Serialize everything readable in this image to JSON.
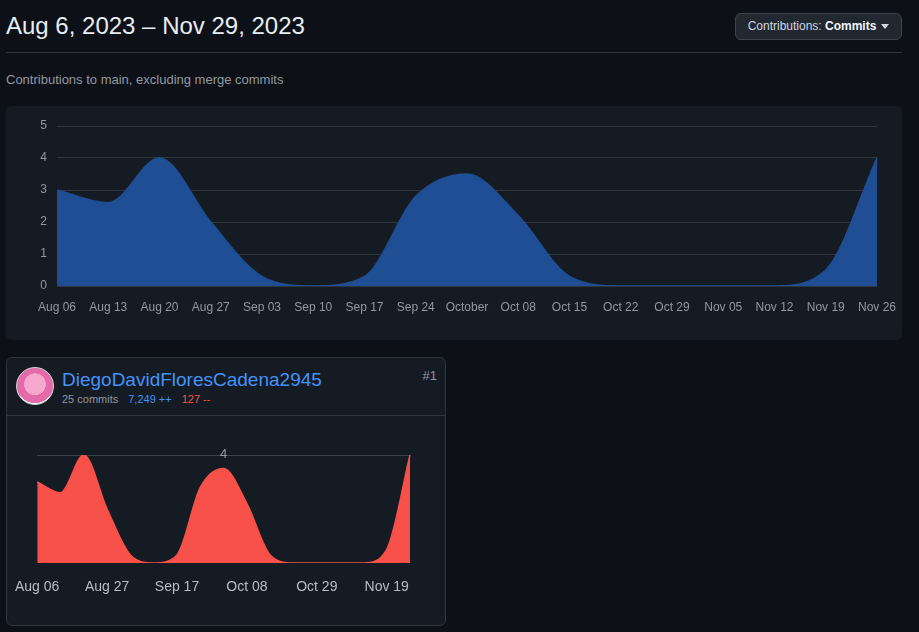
{
  "page": {
    "title": "Aug 6, 2023 – Nov 29, 2023",
    "filter_label": "Contributions:",
    "filter_value": "Commits",
    "subtitle": "Contributions to main, excluding merge commits"
  },
  "chart_data": [
    {
      "type": "area",
      "categories": [
        "Aug 06",
        "Aug 13",
        "Aug 20",
        "Aug 27",
        "Sep 03",
        "Sep 10",
        "Sep 17",
        "Sep 24",
        "October",
        "Oct 08",
        "Oct 15",
        "Oct 22",
        "Oct 29",
        "Nov 05",
        "Nov 12",
        "Nov 19",
        "Nov 26"
      ],
      "values": [
        3,
        2.6,
        4,
        2,
        0.3,
        0,
        0.3,
        2.8,
        3.5,
        2.2,
        0.3,
        0,
        0,
        0,
        0,
        0.5,
        4
      ],
      "color": "#1f4e94",
      "ylim": [
        0,
        5
      ],
      "yticks": [
        0,
        1,
        2,
        3,
        4,
        5
      ],
      "grid": true
    },
    {
      "type": "area",
      "rank": "#1",
      "name": "DiegoDavidFloresCadena2945",
      "commits": "25 commits",
      "additions": "7,249 ++",
      "deletions": "127 --",
      "categories": [
        "Aug 06",
        null,
        null,
        "Aug 27",
        null,
        null,
        "Sep 17",
        null,
        null,
        "Oct 08",
        null,
        null,
        "Oct 29",
        null,
        null,
        "Nov 19",
        null
      ],
      "values": [
        3,
        2.6,
        4,
        2,
        0.3,
        0,
        0.3,
        2.8,
        3.5,
        2.2,
        0.3,
        0,
        0,
        0,
        0,
        0.5,
        4
      ],
      "color": "#f85149",
      "ylim": [
        0,
        4
      ],
      "yticks": [
        4
      ],
      "grid": true
    }
  ]
}
